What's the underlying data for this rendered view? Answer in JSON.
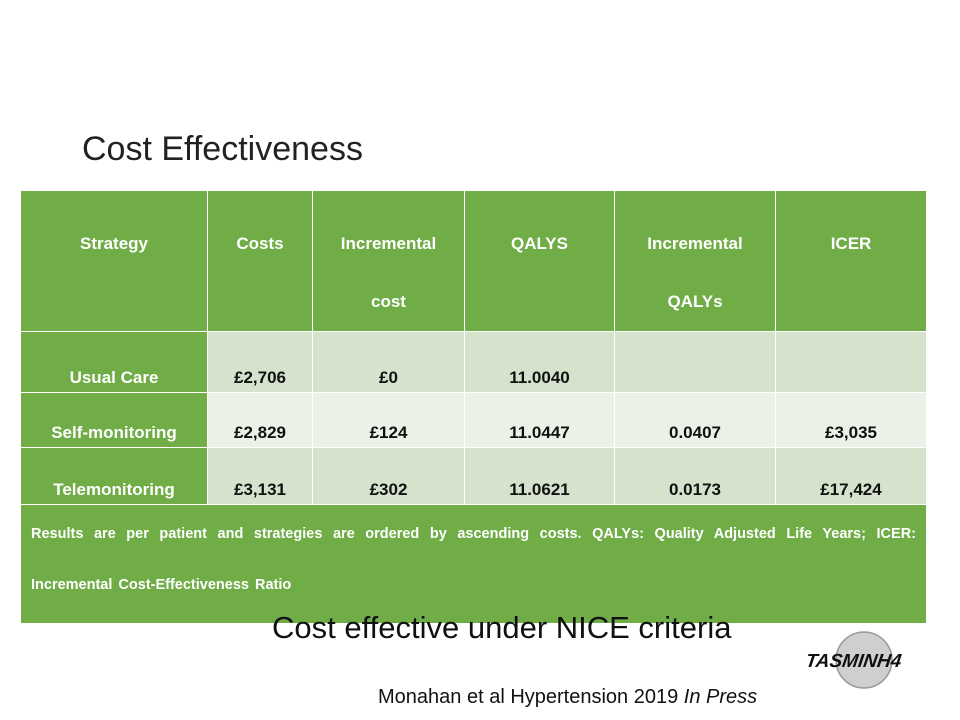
{
  "slide": {
    "title": "Cost Effectiveness",
    "subtitle": "Cost effective under NICE criteria",
    "citation_main": "Monahan et al Hypertension 2019 ",
    "citation_italic": "In Press",
    "logo_text": "TASMINH4"
  },
  "table": {
    "headers": [
      {
        "line1": "Strategy",
        "line2": ""
      },
      {
        "line1": "Costs",
        "line2": ""
      },
      {
        "line1": "Incremental",
        "line2": "cost"
      },
      {
        "line1": "QALYS",
        "line2": ""
      },
      {
        "line1": "Incremental",
        "line2": "QALYs"
      },
      {
        "line1": "ICER",
        "line2": ""
      }
    ],
    "rows": [
      [
        "Usual Care",
        "£2,706",
        "£0",
        "11.0040",
        "",
        ""
      ],
      [
        "Self-monitoring",
        "£2,829",
        "£124",
        "11.0447",
        "0.0407",
        "£3,035"
      ],
      [
        "Telemonitoring",
        "£3,131",
        "£302",
        "11.0621",
        "0.0173",
        "£17,424"
      ]
    ],
    "note": "Results are per patient and strategies are ordered by ascending costs. QALYs: Quality Adjusted Life Years; ICER: Incremental Cost-Effectiveness Ratio"
  },
  "colors": {
    "header_green": "#70ad47",
    "row_light_a": "#d5e3cd",
    "row_light_b": "#eaf1e6"
  }
}
